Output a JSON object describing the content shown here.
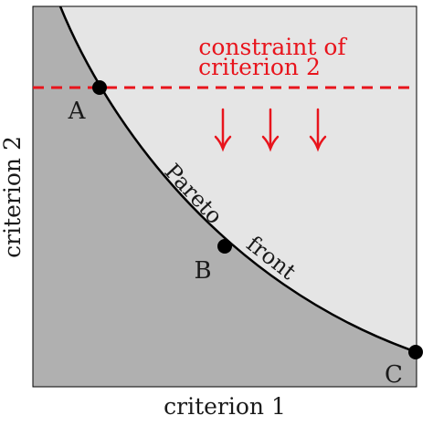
{
  "axes": {
    "x_label": "criterion 1",
    "y_label": "criterion 2"
  },
  "constraint": {
    "label_line1": "constraint of",
    "label_line2": "criterion 2",
    "arrow_count": 3
  },
  "curve": {
    "label_word1": "Pareto",
    "label_word2": "front"
  },
  "points": [
    {
      "label": "A"
    },
    {
      "label": "B"
    },
    {
      "label": "C"
    }
  ],
  "colors": {
    "feasible_region": "#b0b0b0",
    "infeasible_region": "#e5e5e5",
    "curve": "#000000",
    "constraint": "#e8141c",
    "points": "#000000",
    "text": "#1a1a1a",
    "frame": "#000000"
  }
}
